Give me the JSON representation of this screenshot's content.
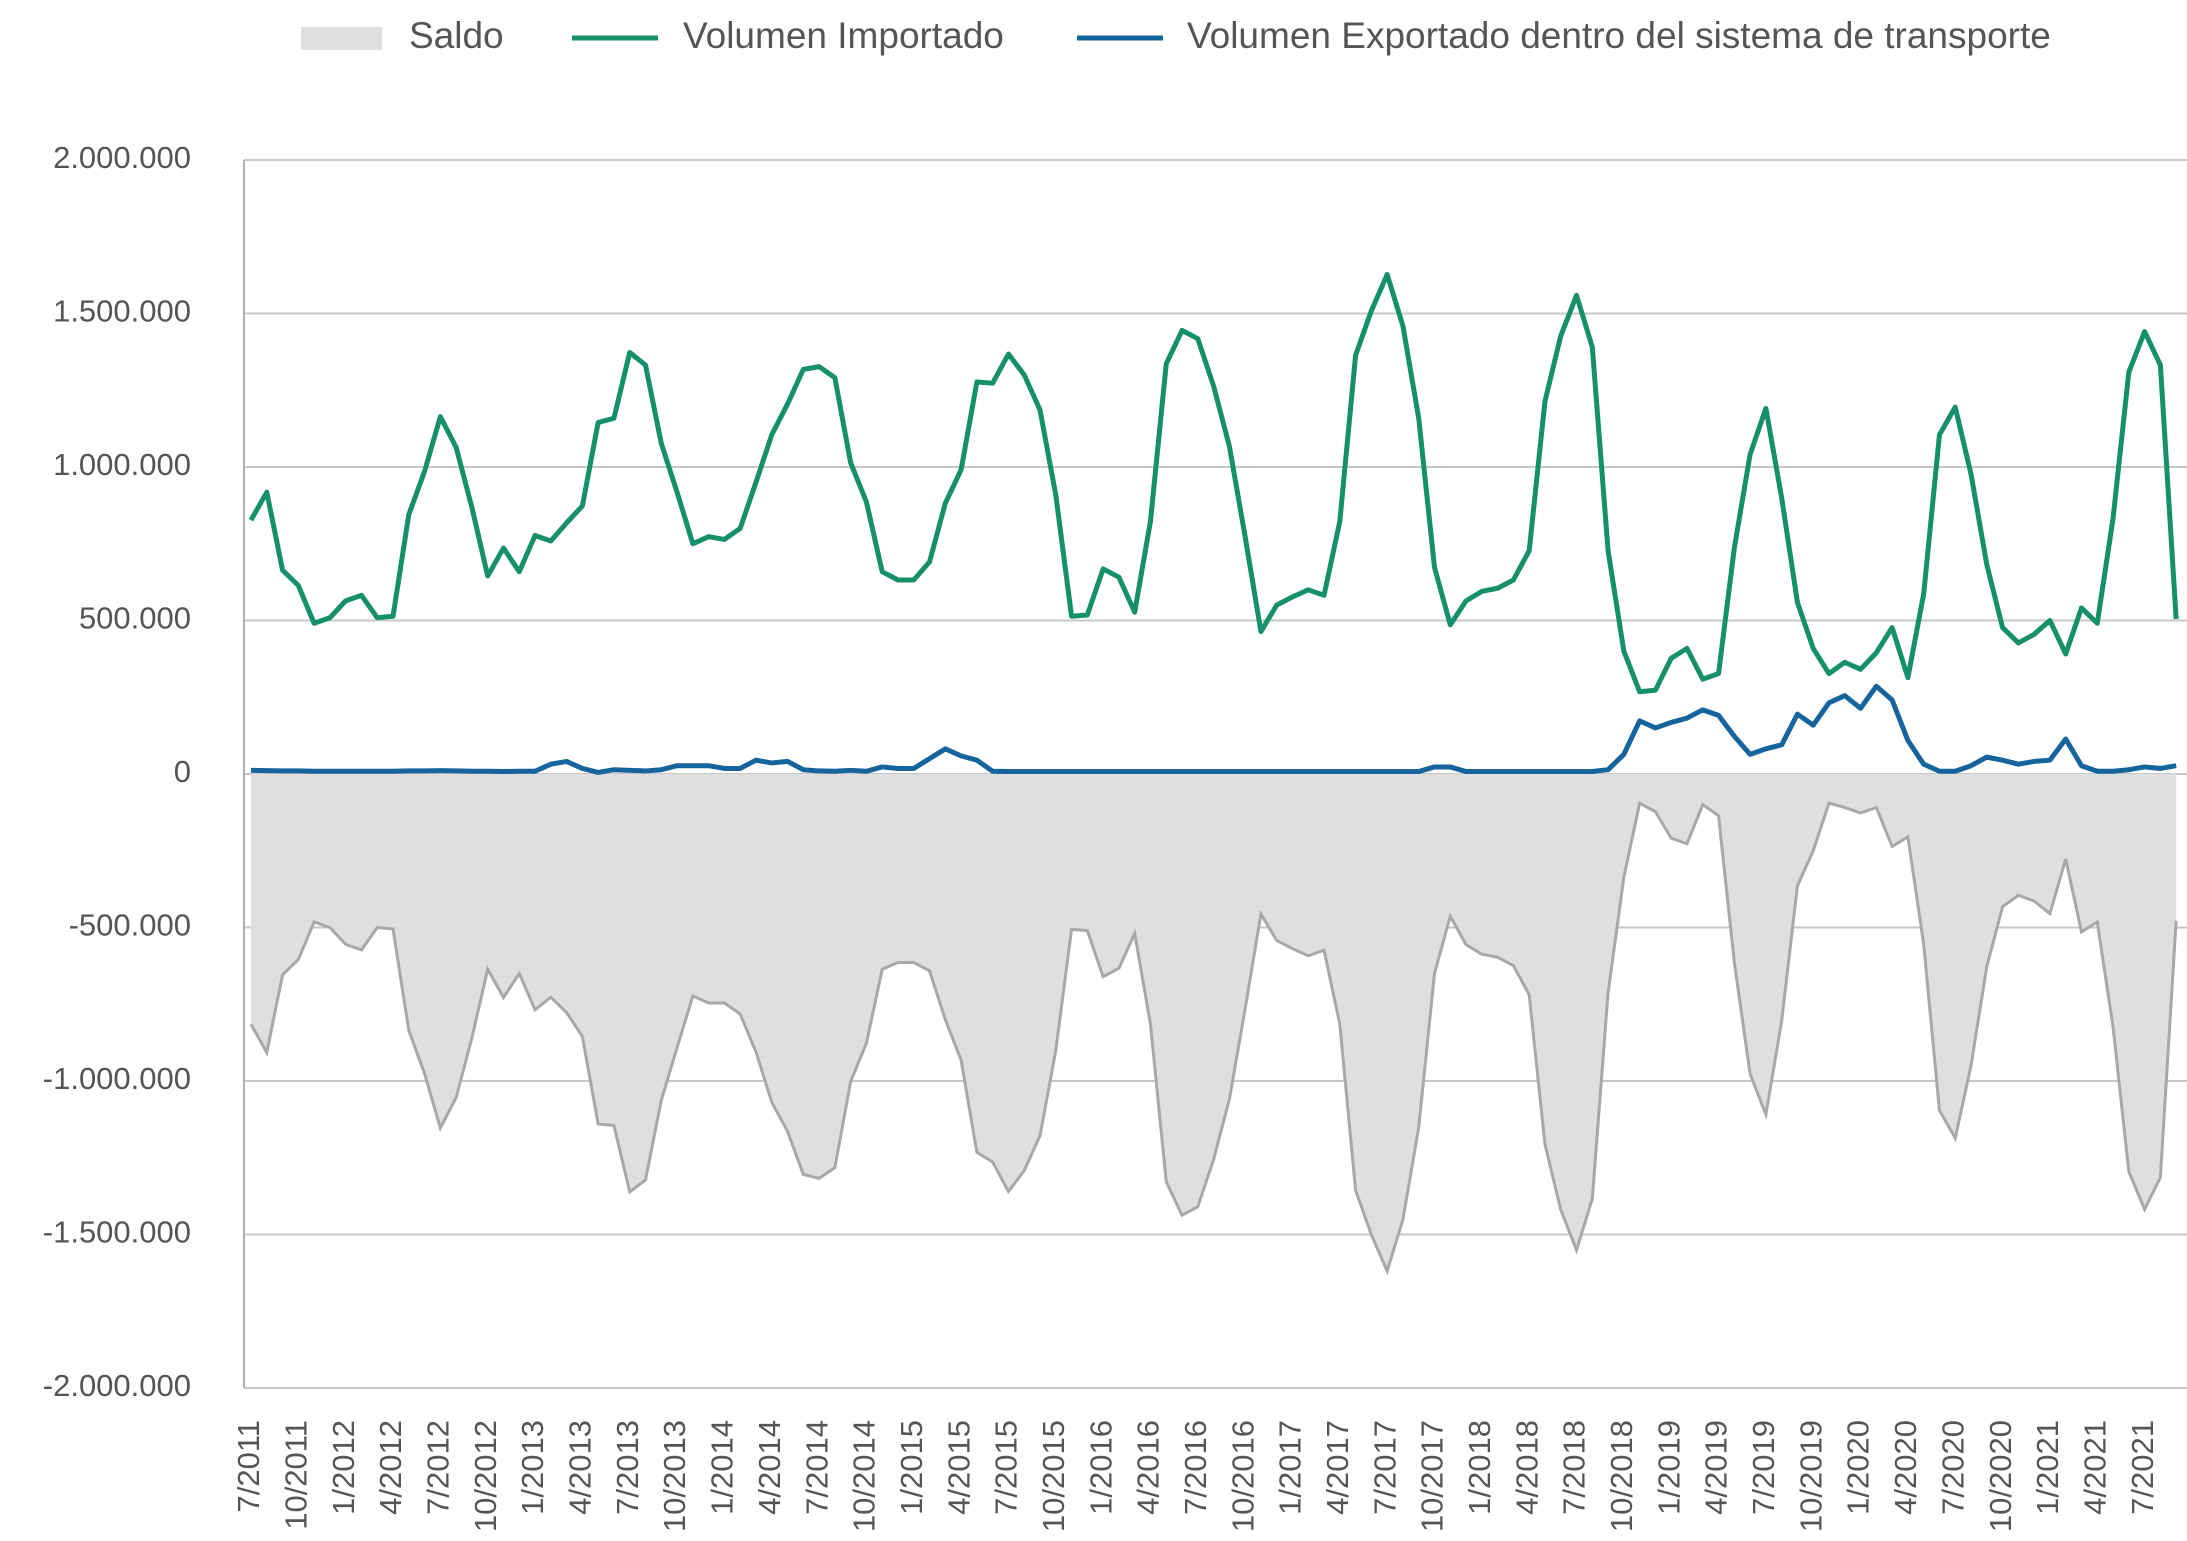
{
  "chart_data": {
    "type": "line",
    "categories": [
      "7/2011",
      null,
      null,
      "10/2011",
      null,
      null,
      "1/2012",
      null,
      null,
      "4/2012",
      null,
      null,
      "7/2012",
      null,
      null,
      "10/2012",
      null,
      null,
      "1/2013",
      null,
      null,
      "4/2013",
      null,
      null,
      "7/2013",
      null,
      null,
      "10/2013",
      null,
      null,
      "1/2014",
      null,
      null,
      "4/2014",
      null,
      null,
      "7/2014",
      null,
      null,
      "10/2014",
      null,
      null,
      "1/2015",
      null,
      null,
      "4/2015",
      null,
      null,
      "7/2015",
      null,
      null,
      "10/2015",
      null,
      null,
      "1/2016",
      null,
      null,
      "4/2016",
      null,
      null,
      "7/2016",
      null,
      null,
      "10/2016",
      null,
      null,
      "1/2017",
      null,
      null,
      "4/2017",
      null,
      null,
      "7/2017",
      null,
      null,
      "10/2017",
      null,
      null,
      "1/2018",
      null,
      null,
      "4/2018",
      null,
      null,
      "7/2018",
      null,
      null,
      "10/2018",
      null,
      null,
      "1/2019",
      null,
      null,
      "4/2019",
      null,
      null,
      "7/2019",
      null,
      null,
      "10/2019",
      null,
      null,
      "1/2020",
      null,
      null,
      "4/2020",
      null,
      null,
      "7/2020",
      null,
      null,
      "10/2020",
      null,
      null,
      "1/2021",
      null,
      null,
      "4/2021",
      null,
      null,
      "7/2021",
      null,
      null
    ],
    "series": [
      {
        "name": "Saldo",
        "type": "area",
        "color": "#e0dfe0",
        "values": [
          -815000,
          -907000,
          -654000,
          -604000,
          -482000,
          -500000,
          -555000,
          -573000,
          -500000,
          -505000,
          -835000,
          -976000,
          -1153000,
          -1054000,
          -859000,
          -636000,
          -728000,
          -650000,
          -768000,
          -727000,
          -777000,
          -855000,
          -1140000,
          -1145000,
          -1361000,
          -1322000,
          -1063000,
          -891000,
          -723000,
          -746000,
          -746000,
          -782000,
          -905000,
          -1069000,
          -1164000,
          -1304000,
          -1317000,
          -1282000,
          -1002000,
          -877000,
          -636000,
          -614000,
          -614000,
          -641000,
          -800000,
          -932000,
          -1232000,
          -1264000,
          -1360000,
          -1292000,
          -1178000,
          -901000,
          -506000,
          -510000,
          -660000,
          -633000,
          -519000,
          -815000,
          -1328000,
          -1437000,
          -1410000,
          -1256000,
          -1060000,
          -765000,
          -456000,
          -542000,
          -569000,
          -592000,
          -574000,
          -815000,
          -1356000,
          -1501000,
          -1619000,
          -1451000,
          -1151000,
          -650000,
          -463000,
          -556000,
          -587000,
          -597000,
          -624000,
          -719000,
          -1206000,
          -1419000,
          -1551000,
          -1383000,
          -713000,
          -336000,
          -95000,
          -123000,
          -209000,
          -227000,
          -100000,
          -136000,
          -613000,
          -977000,
          -1109000,
          -805000,
          -364000,
          -250000,
          -95000,
          -109000,
          -127000,
          -109000,
          -236000,
          -205000,
          -554000,
          -1096000,
          -1186000,
          -950000,
          -627000,
          -432000,
          -395000,
          -414000,
          -455000,
          -277000,
          -514000,
          -482000,
          -823000,
          -1295000,
          -1418000,
          -1314000,
          -478000
        ]
      },
      {
        "name": "Volumen Importado",
        "color": "#16906a",
        "values": [
          827000,
          918000,
          664000,
          614000,
          491000,
          509000,
          564000,
          582000,
          509000,
          514000,
          845000,
          986000,
          1164000,
          1064000,
          868000,
          645000,
          736000,
          659000,
          777000,
          759000,
          818000,
          873000,
          1145000,
          1159000,
          1373000,
          1332000,
          1077000,
          918000,
          750000,
          773000,
          764000,
          800000,
          950000,
          1105000,
          1205000,
          1318000,
          1327000,
          1291000,
          1014000,
          886000,
          659000,
          632000,
          632000,
          691000,
          882000,
          991000,
          1277000,
          1273000,
          1368000,
          1300000,
          1186000,
          909000,
          514000,
          518000,
          668000,
          641000,
          527000,
          823000,
          1336000,
          1445000,
          1418000,
          1264000,
          1068000,
          773000,
          464000,
          550000,
          577000,
          600000,
          582000,
          823000,
          1364000,
          1509000,
          1627000,
          1459000,
          1159000,
          673000,
          486000,
          564000,
          595000,
          605000,
          632000,
          727000,
          1214000,
          1427000,
          1559000,
          1391000,
          727000,
          400000,
          268000,
          273000,
          377000,
          409000,
          309000,
          327000,
          736000,
          1041000,
          1191000,
          900000,
          559000,
          409000,
          327000,
          364000,
          341000,
          395000,
          477000,
          314000,
          586000,
          1105000,
          1195000,
          977000,
          682000,
          477000,
          427000,
          455000,
          500000,
          391000,
          541000,
          491000,
          832000,
          1309000,
          1441000,
          1332000,
          505000
        ]
      },
      {
        "name": "Volumen Exportado dentro del sistema de transporte",
        "color": "#16649e",
        "values": [
          12000,
          11000,
          10000,
          10000,
          9000,
          9000,
          9000,
          9000,
          9000,
          9000,
          10000,
          10000,
          11000,
          10000,
          9000,
          9000,
          8000,
          9000,
          9000,
          32000,
          41000,
          18000,
          5000,
          14000,
          12000,
          10000,
          14000,
          27000,
          27000,
          27000,
          18000,
          18000,
          45000,
          36000,
          41000,
          14000,
          10000,
          9000,
          12000,
          9000,
          23000,
          18000,
          18000,
          50000,
          82000,
          59000,
          45000,
          9000,
          8000,
          8000,
          8000,
          8000,
          8000,
          8000,
          8000,
          8000,
          8000,
          8000,
          8000,
          8000,
          8000,
          8000,
          8000,
          8000,
          8000,
          8000,
          8000,
          8000,
          8000,
          8000,
          8000,
          8000,
          8000,
          8000,
          8000,
          23000,
          23000,
          8000,
          8000,
          8000,
          8000,
          8000,
          8000,
          8000,
          8000,
          8000,
          14000,
          64000,
          173000,
          150000,
          168000,
          182000,
          209000,
          191000,
          123000,
          64000,
          82000,
          95000,
          195000,
          159000,
          232000,
          255000,
          214000,
          286000,
          241000,
          109000,
          32000,
          9000,
          9000,
          27000,
          55000,
          45000,
          32000,
          41000,
          45000,
          114000,
          27000,
          9000,
          9000,
          14000,
          23000,
          18000,
          27000
        ]
      }
    ],
    "ylim": [
      -2000000,
      2000000
    ],
    "yticks": [
      {
        "value": -2000000,
        "label": "-2.000.000"
      },
      {
        "value": -1500000,
        "label": "-1.500.000"
      },
      {
        "value": -1000000,
        "label": "-1.000.000"
      },
      {
        "value": -500000,
        "label": "-500.000"
      },
      0,
      {
        "value": 500000,
        "label": "500.000"
      },
      {
        "value": 1000000,
        "label": "1.000.000"
      },
      {
        "value": 1500000,
        "label": "1.500.000"
      },
      {
        "value": 2000000,
        "label": "2.000.000"
      }
    ],
    "grid": true,
    "legend": "top"
  }
}
